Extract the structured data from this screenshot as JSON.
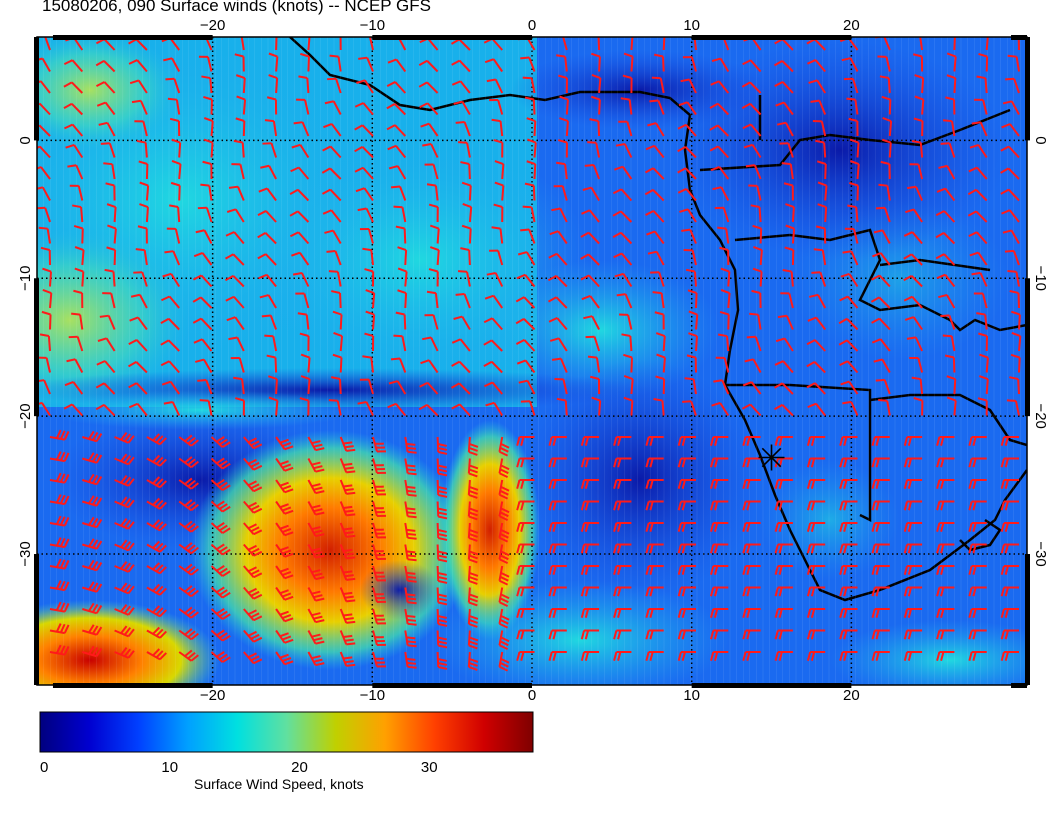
{
  "title": "15080206, 090 Surface winds (knots) -- NCEP GFS",
  "map": {
    "lon_ticks": [
      "−20",
      "−10",
      "0",
      "10",
      "20"
    ],
    "lat_ticks": [
      "0",
      "−10",
      "−20",
      "−30"
    ],
    "lon_range": [
      -31,
      31
    ],
    "lat_range": [
      -39.5,
      7.5
    ],
    "lon_tick_values": [
      -20,
      -10,
      0,
      10,
      20
    ],
    "lat_tick_values": [
      0,
      -10,
      -20,
      -30
    ],
    "barb_color": "#ff1a1a",
    "marker": {
      "name": "asterisk-marker",
      "lon": 15,
      "lat": -23
    }
  },
  "colorbar": {
    "label": "Surface Wind Speed, knots",
    "tick_labels": [
      "0",
      "10",
      "20",
      "30"
    ],
    "tick_values": [
      0,
      10,
      20,
      30
    ],
    "range": [
      0,
      38
    ],
    "colors": [
      "#00007f",
      "#0000d0",
      "#0040ff",
      "#00a0ff",
      "#00e0e0",
      "#60e0a0",
      "#c0d000",
      "#ffa000",
      "#ff4000",
      "#d00000",
      "#7f0000"
    ]
  }
}
